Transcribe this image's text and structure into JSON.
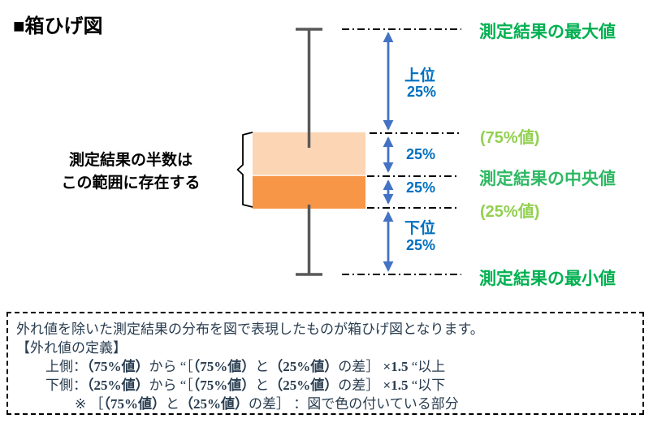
{
  "title": "■箱ひげ図",
  "diagram": {
    "left_note_line1": "測定結果の半数は",
    "left_note_line2": "この範囲に存在する",
    "segment_labels": {
      "upper_label": "上位",
      "upper_pct": "25%",
      "q3_pct": "25%",
      "q2_pct": "25%",
      "lower_label": "下位",
      "lower_pct": "25%"
    },
    "value_labels": {
      "max": "測定結果の最大値",
      "q75": "(75%値)",
      "median": "測定結果の中央値",
      "q25": "(25%値)",
      "min": "測定結果の最小値"
    },
    "colors": {
      "box_upper_fill": "#FCD5B4",
      "box_lower_fill": "#F79646",
      "whisker": "#595959",
      "arrow": "#4472C4",
      "pct_text": "#0070C0",
      "value_strong_green": "#00B050",
      "value_mid_green": "#2EB863",
      "value_light_green": "#92D050",
      "dash_line": "#000000"
    }
  },
  "note_box": {
    "text_color": "#293D50",
    "lines": [
      {
        "indent": 0,
        "segments": [
          {
            "text": "外れ値を除いた測定結果の分布を図で表現したものが箱ひげ図となります。",
            "bold": false
          }
        ]
      },
      {
        "indent": 0,
        "segments": [
          {
            "text": "【外れ値の定義】",
            "bold": false
          }
        ]
      },
      {
        "indent": 1,
        "segments": [
          {
            "text": "上側：",
            "bold": false
          },
          {
            "text": "（75%値）",
            "bold": true
          },
          {
            "text": "から “［",
            "bold": false
          },
          {
            "text": "（75%値）",
            "bold": true
          },
          {
            "text": "と",
            "bold": false
          },
          {
            "text": "（25%値）",
            "bold": true
          },
          {
            "text": "の差］ ",
            "bold": false
          },
          {
            "text": "×1.5",
            "bold": true
          },
          {
            "text": " “以上",
            "bold": false
          }
        ]
      },
      {
        "indent": 1,
        "segments": [
          {
            "text": "下側：",
            "bold": false
          },
          {
            "text": "（25%値）",
            "bold": true
          },
          {
            "text": "から “［",
            "bold": false
          },
          {
            "text": "（75%値）",
            "bold": true
          },
          {
            "text": "と",
            "bold": false
          },
          {
            "text": "（25%値）",
            "bold": true
          },
          {
            "text": "の差］ ",
            "bold": false
          },
          {
            "text": "×1.5",
            "bold": true
          },
          {
            "text": " “以下",
            "bold": false
          }
        ]
      },
      {
        "indent": 2,
        "segments": [
          {
            "text": "※ ［",
            "bold": false
          },
          {
            "text": "（75%値）",
            "bold": true
          },
          {
            "text": "と",
            "bold": false
          },
          {
            "text": "（25%値）",
            "bold": true
          },
          {
            "text": "の差］ ：図で色の付いている部分",
            "bold": false
          }
        ]
      }
    ]
  }
}
